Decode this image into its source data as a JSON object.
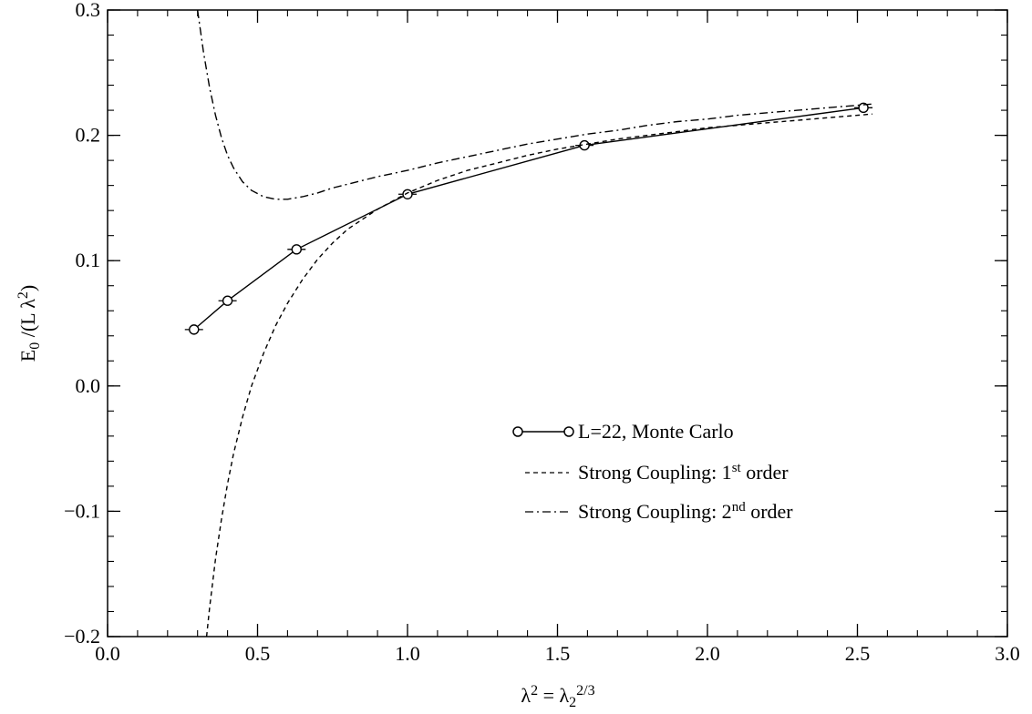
{
  "chart_data": {
    "type": "line",
    "xlabel": {
      "main": "λ",
      "sup1": "2",
      "eq": " = λ",
      "sub": "2",
      "sup2": "2/3"
    },
    "ylabel": {
      "pre": "E",
      "sub": "0",
      "mid": " /(L λ",
      "sup": "2",
      "post": ")"
    },
    "xlim": [
      0.0,
      3.0
    ],
    "ylim": [
      -0.2,
      0.3
    ],
    "xticks": [
      "0.0",
      "0.5",
      "1.0",
      "1.5",
      "2.0",
      "2.5",
      "3.0"
    ],
    "yticks": [
      "−0.2",
      "−0.1",
      "0.0",
      "0.1",
      "0.2",
      "0.3"
    ],
    "grid": false,
    "legend_position": "lower-right",
    "series": [
      {
        "name": "L=22, Monte Carlo",
        "style": "solid-with-circles",
        "x": [
          0.288,
          0.4,
          0.63,
          1.0,
          1.59,
          2.52
        ],
        "y": [
          0.045,
          0.068,
          0.109,
          0.153,
          0.192,
          0.222
        ]
      },
      {
        "name": "Strong Coupling: 1st order",
        "style": "dashed",
        "x": [
          0.33,
          0.34,
          0.36,
          0.38,
          0.4,
          0.42,
          0.45,
          0.48,
          0.52,
          0.56,
          0.6,
          0.65,
          0.7,
          0.75,
          0.8,
          0.9,
          1.0,
          1.1,
          1.2,
          1.3,
          1.4,
          1.5,
          1.6,
          1.7,
          1.8,
          1.9,
          2.0,
          2.1,
          2.2,
          2.3,
          2.4,
          2.5,
          2.55
        ],
        "y": [
          -0.2,
          -0.177,
          -0.138,
          -0.106,
          -0.078,
          -0.054,
          -0.025,
          0.0,
          0.026,
          0.048,
          0.066,
          0.085,
          0.101,
          0.114,
          0.125,
          0.141,
          0.154,
          0.164,
          0.172,
          0.178,
          0.184,
          0.189,
          0.193,
          0.197,
          0.2,
          0.203,
          0.206,
          0.208,
          0.21,
          0.212,
          0.214,
          0.216,
          0.217
        ]
      },
      {
        "name": "Strong Coupling: 2nd order",
        "style": "dash-dot",
        "x": [
          0.3,
          0.32,
          0.34,
          0.36,
          0.38,
          0.4,
          0.42,
          0.45,
          0.48,
          0.52,
          0.56,
          0.6,
          0.65,
          0.7,
          0.75,
          0.8,
          0.9,
          1.0,
          1.1,
          1.2,
          1.3,
          1.4,
          1.5,
          1.6,
          1.7,
          1.8,
          1.9,
          2.0,
          2.1,
          2.2,
          2.3,
          2.4,
          2.5,
          2.55
        ],
        "y": [
          0.3,
          0.266,
          0.238,
          0.216,
          0.198,
          0.184,
          0.174,
          0.163,
          0.156,
          0.151,
          0.149,
          0.149,
          0.151,
          0.154,
          0.158,
          0.161,
          0.167,
          0.172,
          0.178,
          0.183,
          0.188,
          0.193,
          0.197,
          0.201,
          0.204,
          0.208,
          0.211,
          0.213,
          0.216,
          0.218,
          0.22,
          0.222,
          0.224,
          0.225
        ]
      }
    ]
  },
  "legend": {
    "items": [
      {
        "label": "L=22, Monte Carlo"
      },
      {
        "label_main": "Strong Coupling: 1",
        "label_sup": "st",
        "label_tail": " order"
      },
      {
        "label_main": "Strong Coupling: 2",
        "label_sup": "nd",
        "label_tail": " order"
      }
    ]
  }
}
